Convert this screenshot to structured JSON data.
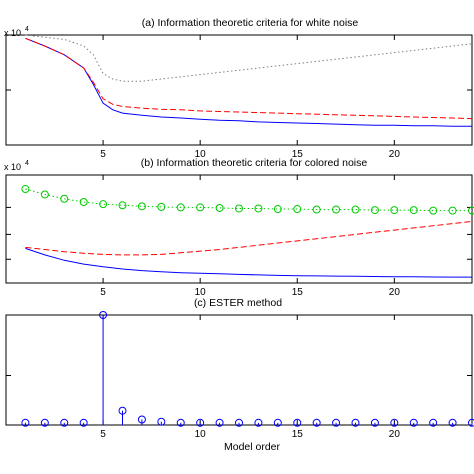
{
  "figure": {
    "xlabel": "Model order"
  },
  "chart_data": [
    {
      "type": "line",
      "title": "(a) Information theoretic criteria for white noise",
      "exponent_base": "x 10",
      "exponent_power": "4",
      "x_ticks": [
        "5",
        "10",
        "15",
        "20"
      ],
      "xlim": [
        0,
        24
      ],
      "grid": false,
      "x": [
        1,
        2,
        3,
        4,
        4.5,
        5,
        5.5,
        6,
        7,
        8,
        9,
        10,
        11,
        12,
        13,
        14,
        15,
        16,
        17,
        18,
        19,
        20,
        21,
        22,
        23,
        24
      ],
      "series": [
        {
          "color": "#0000ff",
          "style": "solid",
          "values": [
            0.97,
            0.9,
            0.82,
            0.7,
            0.55,
            0.38,
            0.32,
            0.29,
            0.27,
            0.255,
            0.245,
            0.235,
            0.225,
            0.22,
            0.21,
            0.205,
            0.2,
            0.195,
            0.19,
            0.185,
            0.18,
            0.18,
            0.175,
            0.175,
            0.17,
            0.17
          ]
        },
        {
          "color": "#ff0000",
          "style": "dashed",
          "values": [
            0.97,
            0.9,
            0.82,
            0.7,
            0.57,
            0.42,
            0.37,
            0.35,
            0.335,
            0.325,
            0.32,
            0.31,
            0.305,
            0.3,
            0.295,
            0.29,
            0.285,
            0.28,
            0.275,
            0.27,
            0.265,
            0.26,
            0.255,
            0.25,
            0.245,
            0.24
          ]
        },
        {
          "color": "#7f7f7f",
          "style": "dotted",
          "values": [
            1.0,
            0.98,
            0.96,
            0.9,
            0.82,
            0.65,
            0.6,
            0.58,
            0.58,
            0.6,
            0.62,
            0.64,
            0.66,
            0.68,
            0.7,
            0.72,
            0.74,
            0.76,
            0.78,
            0.8,
            0.82,
            0.84,
            0.86,
            0.88,
            0.9,
            0.92
          ]
        }
      ]
    },
    {
      "type": "line",
      "title": "(b) Information theoretic criteria for colored noise",
      "exponent_base": "x 10",
      "exponent_power": "4",
      "x_ticks": [
        "5",
        "10",
        "15",
        "20"
      ],
      "xlim": [
        0,
        24
      ],
      "grid": false,
      "x": [
        1,
        2,
        3,
        4,
        5,
        6,
        7,
        8,
        9,
        10,
        11,
        12,
        13,
        14,
        15,
        16,
        17,
        18,
        19,
        20,
        21,
        22,
        23,
        24
      ],
      "series": [
        {
          "color": "#0000ff",
          "style": "solid",
          "values": [
            0.32,
            0.26,
            0.21,
            0.175,
            0.15,
            0.13,
            0.115,
            0.105,
            0.095,
            0.09,
            0.085,
            0.08,
            0.075,
            0.07,
            0.068,
            0.066,
            0.064,
            0.062,
            0.06,
            0.058,
            0.057,
            0.056,
            0.055,
            0.055
          ]
        },
        {
          "color": "#ff0000",
          "style": "dashed",
          "values": [
            0.33,
            0.31,
            0.29,
            0.275,
            0.265,
            0.26,
            0.26,
            0.265,
            0.28,
            0.295,
            0.31,
            0.33,
            0.35,
            0.37,
            0.39,
            0.41,
            0.43,
            0.45,
            0.47,
            0.49,
            0.51,
            0.53,
            0.55,
            0.57
          ]
        },
        {
          "color": "#00cc00",
          "style": "dotted",
          "marker": "circle",
          "values": [
            0.87,
            0.82,
            0.78,
            0.75,
            0.73,
            0.72,
            0.71,
            0.705,
            0.7,
            0.7,
            0.695,
            0.69,
            0.69,
            0.685,
            0.685,
            0.68,
            0.68,
            0.68,
            0.675,
            0.675,
            0.675,
            0.67,
            0.67,
            0.67
          ]
        }
      ]
    },
    {
      "type": "stem",
      "title": "(c) ESTER method",
      "x_ticks": [
        "5",
        "10",
        "15",
        "20"
      ],
      "xlim": [
        0,
        24
      ],
      "grid": false,
      "x": [
        1,
        2,
        3,
        4,
        5,
        6,
        7,
        8,
        9,
        10,
        11,
        12,
        13,
        14,
        15,
        16,
        17,
        18,
        19,
        20,
        21,
        22,
        23,
        24
      ],
      "series": [
        {
          "color": "#0000ff",
          "marker": "circle",
          "values": [
            0.02,
            0.02,
            0.02,
            0.02,
            1.0,
            0.13,
            0.05,
            0.03,
            0.02,
            0.02,
            0.02,
            0.02,
            0.02,
            0.02,
            0.02,
            0.02,
            0.02,
            0.02,
            0.02,
            0.02,
            0.02,
            0.02,
            0.02,
            0.02
          ]
        }
      ]
    }
  ]
}
